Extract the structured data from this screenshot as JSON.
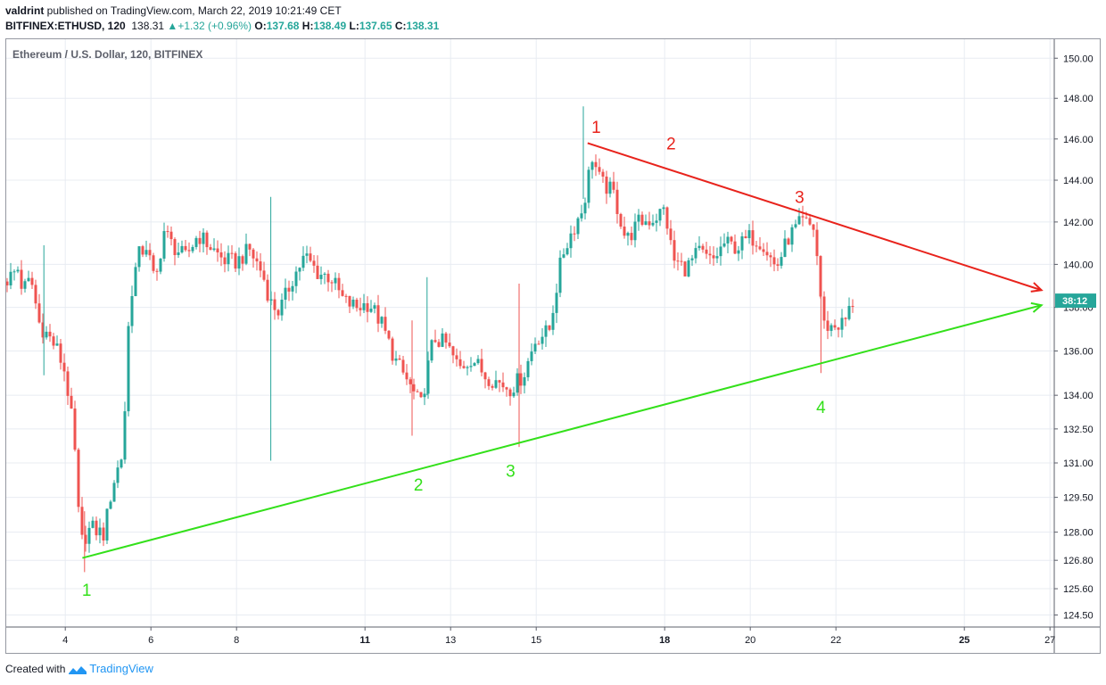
{
  "header": {
    "author": "valdrint",
    "published_text": " published on TradingView.com, March 22, 2019 10:21:49 CET",
    "symbol": "BITFINEX:ETHUSD, 120",
    "last": "138.31",
    "change": "+1.32 (+0.96%)",
    "o_label": "O:",
    "o_value": "137.68",
    "h_label": "H:",
    "h_value": "138.49",
    "l_label": "L:",
    "l_value": "137.65",
    "c_label": "C:",
    "c_value": "138.31"
  },
  "footer": {
    "created_with": "Created with",
    "brand": "TradingView"
  },
  "colors": {
    "up": "#26a69a",
    "down": "#ef5350",
    "resistance": "#e8231c",
    "support": "#33e01a",
    "grid": "#e8ecf2",
    "axis": "#5d606b"
  },
  "chart_data": {
    "type": "candlestick",
    "title": "Ethereum / U.S. Dollar, 120, BITFINEX",
    "y_scale": "log",
    "ylim": [
      124.0,
      151.0
    ],
    "xlim": [
      2.6,
      27.1
    ],
    "y_ticks": [
      "150.00",
      "148.00",
      "146.00",
      "144.00",
      "142.00",
      "140.00",
      "138.00",
      "136.00",
      "134.00",
      "132.50",
      "131.00",
      "129.50",
      "128.00",
      "126.80",
      "125.60",
      "124.50"
    ],
    "x_ticks": [
      {
        "x": 4,
        "label": "4",
        "bold": false
      },
      {
        "x": 6,
        "label": "6",
        "bold": false
      },
      {
        "x": 8,
        "label": "8",
        "bold": false
      },
      {
        "x": 11,
        "label": "11",
        "bold": true
      },
      {
        "x": 13,
        "label": "13",
        "bold": false
      },
      {
        "x": 15,
        "label": "15",
        "bold": false
      },
      {
        "x": 18,
        "label": "18",
        "bold": true
      },
      {
        "x": 20,
        "label": "20",
        "bold": false
      },
      {
        "x": 22,
        "label": "22",
        "bold": false
      },
      {
        "x": 25,
        "label": "25",
        "bold": true
      },
      {
        "x": 27,
        "label": "27",
        "bold": false
      }
    ],
    "price_label": "38:12",
    "price_label_value": 138.31,
    "price_path": [
      [
        2.6,
        139.2
      ],
      [
        2.9,
        139.8
      ],
      [
        3.0,
        138.8
      ],
      [
        3.2,
        139.3
      ],
      [
        3.4,
        137.2
      ],
      [
        3.6,
        136.7
      ],
      [
        3.8,
        136.1
      ],
      [
        4.0,
        135.0
      ],
      [
        4.2,
        132.2
      ],
      [
        4.35,
        127.5
      ],
      [
        4.6,
        128.2
      ],
      [
        4.9,
        127.9
      ],
      [
        5.1,
        130.0
      ],
      [
        5.35,
        131.5
      ],
      [
        5.5,
        138.2
      ],
      [
        5.7,
        140.4
      ],
      [
        5.9,
        140.9
      ],
      [
        6.1,
        139.0
      ],
      [
        6.3,
        141.6
      ],
      [
        6.5,
        140.9
      ],
      [
        6.8,
        140.3
      ],
      [
        7.1,
        141.4
      ],
      [
        7.4,
        140.8
      ],
      [
        7.7,
        140.2
      ],
      [
        8.0,
        140.1
      ],
      [
        8.3,
        140.7
      ],
      [
        8.6,
        139.6
      ],
      [
        8.8,
        138.2
      ],
      [
        9.0,
        137.8
      ],
      [
        9.3,
        139.3
      ],
      [
        9.6,
        140.4
      ],
      [
        9.9,
        139.6
      ],
      [
        10.2,
        139.4
      ],
      [
        10.5,
        138.3
      ],
      [
        10.8,
        138.0
      ],
      [
        11.1,
        138.2
      ],
      [
        11.4,
        137.2
      ],
      [
        11.7,
        135.6
      ],
      [
        12.0,
        134.6
      ],
      [
        12.3,
        133.5
      ],
      [
        12.6,
        136.6
      ],
      [
        12.9,
        136.3
      ],
      [
        13.2,
        135.2
      ],
      [
        13.5,
        135.7
      ],
      [
        13.8,
        134.9
      ],
      [
        14.1,
        134.6
      ],
      [
        14.4,
        134.3
      ],
      [
        14.7,
        134.9
      ],
      [
        15.0,
        136.6
      ],
      [
        15.3,
        136.9
      ],
      [
        15.6,
        140.4
      ],
      [
        15.8,
        141.4
      ],
      [
        16.1,
        142.7
      ],
      [
        16.3,
        145.2
      ],
      [
        16.5,
        143.9
      ],
      [
        16.8,
        143.4
      ],
      [
        17.1,
        141.1
      ],
      [
        17.4,
        142.0
      ],
      [
        17.7,
        142.1
      ],
      [
        18.0,
        142.6
      ],
      [
        18.2,
        140.2
      ],
      [
        18.5,
        139.8
      ],
      [
        18.8,
        140.6
      ],
      [
        19.1,
        140.1
      ],
      [
        19.4,
        141.0
      ],
      [
        19.7,
        140.8
      ],
      [
        20.0,
        141.3
      ],
      [
        20.3,
        141.0
      ],
      [
        20.6,
        139.8
      ],
      [
        20.9,
        141.3
      ],
      [
        21.2,
        142.0
      ],
      [
        21.5,
        141.7
      ],
      [
        21.7,
        137.2
      ],
      [
        21.9,
        137.1
      ],
      [
        22.2,
        137.3
      ],
      [
        22.4,
        138.31
      ]
    ],
    "spikes": [
      {
        "x": 3.5,
        "high": 140.9,
        "low": 134.9
      },
      {
        "x": 4.45,
        "high": 128.9,
        "low": 126.3
      },
      {
        "x": 8.8,
        "high": 143.2,
        "low": 131.1
      },
      {
        "x": 12.1,
        "high": 137.4,
        "low": 132.2
      },
      {
        "x": 12.45,
        "high": 139.4,
        "low": 134.0
      },
      {
        "x": 14.6,
        "high": 139.1,
        "low": 131.7
      },
      {
        "x": 16.1,
        "high": 147.6,
        "low": 143.1
      },
      {
        "x": 21.65,
        "high": 140.4,
        "low": 135.0
      }
    ],
    "trendlines": [
      {
        "name": "resistance",
        "from": [
          16.2,
          145.8
        ],
        "to": [
          26.8,
          138.8
        ],
        "color": "#e8231c"
      },
      {
        "name": "support",
        "from": [
          4.4,
          126.9
        ],
        "to": [
          26.8,
          138.1
        ],
        "color": "#33e01a"
      }
    ],
    "annotations": [
      {
        "text": "1",
        "x": 16.4,
        "y": 146.3,
        "color": "#e8231c"
      },
      {
        "text": "2",
        "x": 18.15,
        "y": 145.5,
        "color": "#e8231c"
      },
      {
        "text": "3",
        "x": 21.15,
        "y": 142.9,
        "color": "#e8231c"
      },
      {
        "text": "1",
        "x": 4.5,
        "y": 125.3,
        "color": "#33e01a"
      },
      {
        "text": "2",
        "x": 12.25,
        "y": 129.8,
        "color": "#33e01a"
      },
      {
        "text": "3",
        "x": 14.4,
        "y": 130.4,
        "color": "#33e01a"
      },
      {
        "text": "4",
        "x": 21.65,
        "y": 133.2,
        "color": "#33e01a"
      }
    ]
  }
}
